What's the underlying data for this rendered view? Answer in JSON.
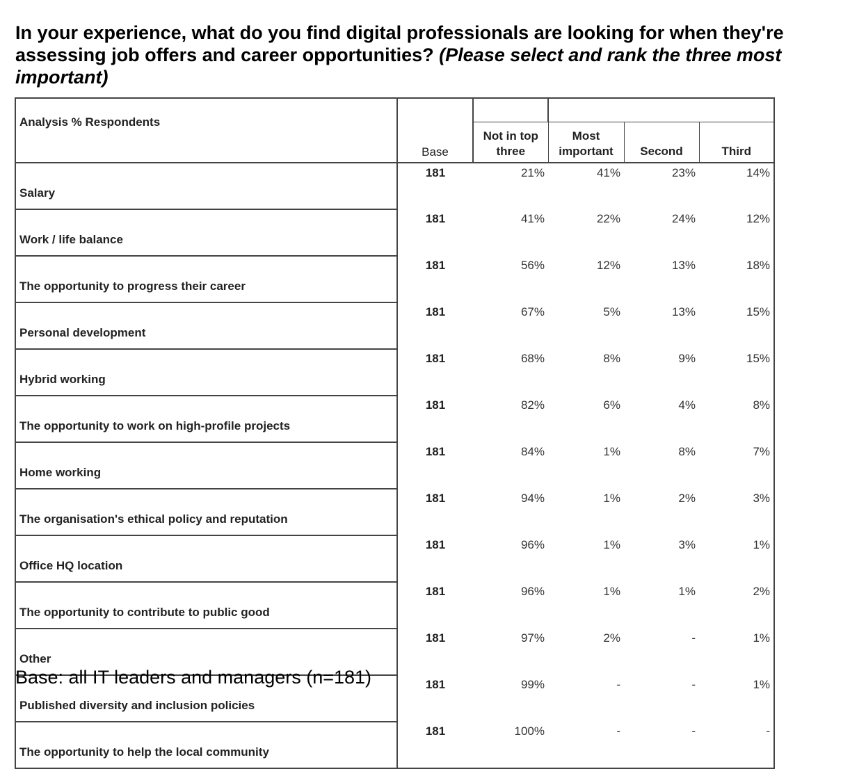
{
  "title": {
    "main": "In your experience, what do you find digital professionals are looking for when they're assessing job offers and career opportunities?",
    "note": "(Please select and rank the three most important)"
  },
  "chart_data": {
    "type": "table",
    "header": {
      "analysis_label": "Analysis % Respondents",
      "base_label": "Base",
      "columns": [
        "Not in top three",
        "Most important",
        "Second",
        "Third"
      ]
    },
    "rows": [
      {
        "label": "Salary",
        "base": "181",
        "values": [
          "21%",
          "41%",
          "23%",
          "14%"
        ]
      },
      {
        "label": "Work / life balance",
        "base": "181",
        "values": [
          "41%",
          "22%",
          "24%",
          "12%"
        ]
      },
      {
        "label": "The opportunity to progress their career",
        "base": "181",
        "values": [
          "56%",
          "12%",
          "13%",
          "18%"
        ]
      },
      {
        "label": "Personal development",
        "base": "181",
        "values": [
          "67%",
          "5%",
          "13%",
          "15%"
        ]
      },
      {
        "label": "Hybrid working",
        "base": "181",
        "values": [
          "68%",
          "8%",
          "9%",
          "15%"
        ]
      },
      {
        "label": "The opportunity to work on high-profile projects",
        "base": "181",
        "values": [
          "82%",
          "6%",
          "4%",
          "8%"
        ]
      },
      {
        "label": "Home working",
        "base": "181",
        "values": [
          "84%",
          "1%",
          "8%",
          "7%"
        ]
      },
      {
        "label": "The organisation's ethical policy and reputation",
        "base": "181",
        "values": [
          "94%",
          "1%",
          "2%",
          "3%"
        ]
      },
      {
        "label": "Office HQ location",
        "base": "181",
        "values": [
          "96%",
          "1%",
          "3%",
          "1%"
        ]
      },
      {
        "label": "The opportunity to contribute to public good",
        "base": "181",
        "values": [
          "96%",
          "1%",
          "1%",
          "2%"
        ]
      },
      {
        "label": "Other",
        "base": "181",
        "values": [
          "97%",
          "2%",
          "-",
          "1%"
        ]
      },
      {
        "label": "Published diversity and inclusion policies",
        "base": "181",
        "values": [
          "99%",
          "-",
          "-",
          "1%"
        ]
      },
      {
        "label": "The opportunity to help the local community",
        "base": "181",
        "values": [
          "100%",
          "-",
          "-",
          "-"
        ]
      }
    ]
  },
  "footnote": "Base: all IT leaders and managers (n=181)"
}
